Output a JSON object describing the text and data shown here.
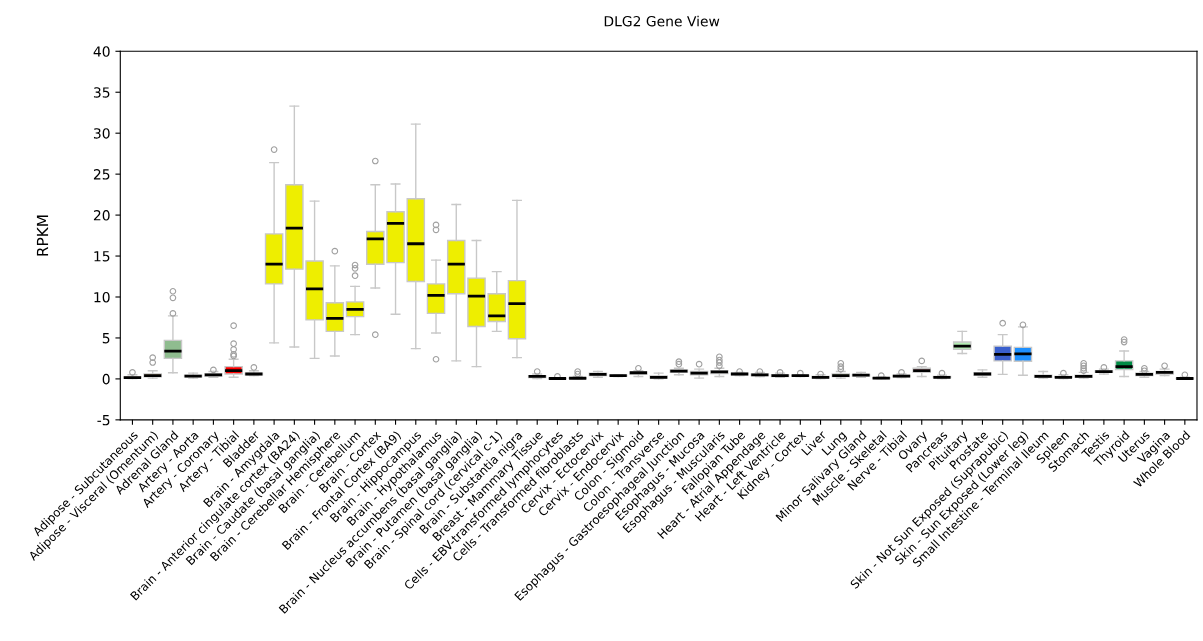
{
  "chart_data": {
    "type": "box",
    "title": "DLG2 Gene View",
    "ylabel": "RPKM",
    "categories": [
      "Adipose - Subcutaneous",
      "Adipose - Visceral (Omentum)",
      "Adrenal Gland",
      "Artery - Aorta",
      "Artery - Coronary",
      "Artery - Tibial",
      "Bladder",
      "Brain - Amygdala",
      "Brain - Anterior cingulate cortex (BA24)",
      "Brain - Caudate (basal ganglia)",
      "Brain - Cerebellar Hemisphere",
      "Brain - Cerebellum",
      "Brain - Cortex",
      "Brain - Frontal Cortex (BA9)",
      "Brain - Hippocampus",
      "Brain - Hypothalamus",
      "Brain - Nucleus accumbens (basal ganglia)",
      "Brain - Putamen (basal ganglia)",
      "Brain - Spinal cord (cervical c-1)",
      "Brain - Substantia nigra",
      "Breast - Mammary Tissue",
      "Cells - EBV-transformed lymphocytes",
      "Cells - Transformed fibroblasts",
      "Cervix - Ectocervix",
      "Cervix - Endocervix",
      "Colon - Sigmoid",
      "Colon - Transverse",
      "Esophagus - Gastroesophageal Junction",
      "Esophagus - Mucosa",
      "Esophagus - Muscularis",
      "Fallopian Tube",
      "Heart - Atrial Appendage",
      "Heart - Left Ventricle",
      "Kidney - Cortex",
      "Liver",
      "Lung",
      "Minor Salivary Gland",
      "Muscle - Skeletal",
      "Nerve - Tibial",
      "Ovary",
      "Pancreas",
      "Pituitary",
      "Prostate",
      "Skin - Not Sun Exposed (Suprapubic)",
      "Skin - Sun Exposed (Lower leg)",
      "Small Intestine - Terminal Ileum",
      "Spleen",
      "Stomach",
      "Testis",
      "Thyroid",
      "Uterus",
      "Vagina",
      "Whole Blood"
    ],
    "colors": [
      "#ffa54f",
      "#ee9a00",
      "#8fbc8f",
      "#8b1c62",
      "#ee6a50",
      "#ff0000",
      "#cdb79e",
      "#eeee00",
      "#eeee00",
      "#eeee00",
      "#eeee00",
      "#eeee00",
      "#eeee00",
      "#eeee00",
      "#eeee00",
      "#eeee00",
      "#eeee00",
      "#eeee00",
      "#eeee00",
      "#eeee00",
      "#00cdcd",
      "#ee82ee",
      "#9ac0cd",
      "#eeb4b4",
      "#eeb4b4",
      "#cdb79e",
      "#eec591",
      "#8b7355",
      "#8b7355",
      "#cdaa7d",
      "#eeb4b4",
      "#b23aee",
      "#7a378b",
      "#cdb79e",
      "#cdb79e",
      "#9acd32",
      "#cdb79e",
      "#7a67ee",
      "#ffd700",
      "#ffb6c1",
      "#cd9b1d",
      "#b4eeb4",
      "#d9d9d9",
      "#3a5fcd",
      "#1e90ff",
      "#cdb79e",
      "#cdb79e",
      "#ffd39b",
      "#a6a6a6",
      "#008b45",
      "#eed5d2",
      "#eed5d2",
      "#ff00ff"
    ],
    "boxes": [
      {
        "low": 0.05,
        "q1": 0.1,
        "median": 0.15,
        "q3": 0.25,
        "high": 0.5,
        "outliers": [
          0.8
        ]
      },
      {
        "low": 0.1,
        "q1": 0.25,
        "median": 0.4,
        "q3": 0.6,
        "high": 1.0,
        "outliers": [
          2.0,
          2.6
        ]
      },
      {
        "low": 0.75,
        "q1": 2.5,
        "median": 3.4,
        "q3": 4.7,
        "high": 7.7,
        "outliers": [
          8.0,
          9.9,
          10.7
        ]
      },
      {
        "low": 0.1,
        "q1": 0.25,
        "median": 0.35,
        "q3": 0.45,
        "high": 0.7
      },
      {
        "low": 0.2,
        "q1": 0.35,
        "median": 0.5,
        "q3": 0.65,
        "high": 0.9,
        "outliers": [
          1.1
        ]
      },
      {
        "low": 0.2,
        "q1": 0.6,
        "median": 1.0,
        "q3": 1.5,
        "high": 2.4,
        "outliers": [
          2.8,
          3.0,
          3.6,
          4.3,
          6.5
        ]
      },
      {
        "low": 0.4,
        "q1": 0.5,
        "median": 0.6,
        "q3": 0.7,
        "high": 1.0,
        "outliers": [
          1.4
        ]
      },
      {
        "low": 4.4,
        "q1": 11.6,
        "median": 14.0,
        "q3": 17.7,
        "high": 26.4,
        "outliers": [
          28.0
        ]
      },
      {
        "low": 3.9,
        "q1": 13.4,
        "median": 18.4,
        "q3": 23.7,
        "high": 33.3
      },
      {
        "low": 2.5,
        "q1": 7.2,
        "median": 11.0,
        "q3": 14.4,
        "high": 21.7
      },
      {
        "low": 2.8,
        "q1": 5.8,
        "median": 7.4,
        "q3": 9.3,
        "high": 13.8,
        "outliers": [
          15.6
        ]
      },
      {
        "low": 5.4,
        "q1": 7.6,
        "median": 8.5,
        "q3": 9.4,
        "high": 11.3,
        "outliers": [
          12.6,
          13.5,
          13.9
        ]
      },
      {
        "low": 11.1,
        "q1": 14.0,
        "median": 17.1,
        "q3": 18.0,
        "high": 23.7,
        "outliers": [
          5.4,
          26.6
        ]
      },
      {
        "low": 7.9,
        "q1": 14.2,
        "median": 19.0,
        "q3": 20.4,
        "high": 23.8
      },
      {
        "low": 3.7,
        "q1": 11.9,
        "median": 16.5,
        "q3": 22.0,
        "high": 31.1
      },
      {
        "low": 5.6,
        "q1": 8.0,
        "median": 10.2,
        "q3": 11.6,
        "high": 14.5,
        "outliers": [
          2.4,
          18.2,
          18.8
        ]
      },
      {
        "low": 2.2,
        "q1": 10.4,
        "median": 14.0,
        "q3": 16.9,
        "high": 21.3
      },
      {
        "low": 1.5,
        "q1": 6.4,
        "median": 10.1,
        "q3": 12.3,
        "high": 16.9
      },
      {
        "low": 5.8,
        "q1": 7.0,
        "median": 7.7,
        "q3": 10.4,
        "high": 13.1
      },
      {
        "low": 2.6,
        "q1": 4.9,
        "median": 9.2,
        "q3": 12.0,
        "high": 21.8
      },
      {
        "low": 0.05,
        "q1": 0.15,
        "median": 0.3,
        "q3": 0.4,
        "high": 0.6,
        "outliers": [
          0.9
        ]
      },
      {
        "low": 0.0,
        "q1": 0.02,
        "median": 0.05,
        "q3": 0.1,
        "high": 0.15,
        "outliers": [
          0.3
        ]
      },
      {
        "low": 0.0,
        "q1": 0.03,
        "median": 0.08,
        "q3": 0.12,
        "high": 0.3,
        "outliers": [
          0.6,
          0.9
        ]
      },
      {
        "low": 0.2,
        "q1": 0.4,
        "median": 0.55,
        "q3": 0.7,
        "high": 0.9
      },
      {
        "low": 0.3,
        "q1": 0.35,
        "median": 0.4,
        "q3": 0.45,
        "high": 0.5
      },
      {
        "low": 0.3,
        "q1": 0.6,
        "median": 0.75,
        "q3": 0.85,
        "high": 1.0,
        "outliers": [
          1.3
        ]
      },
      {
        "low": 0.0,
        "q1": 0.1,
        "median": 0.2,
        "q3": 0.35,
        "high": 0.7
      },
      {
        "low": 0.5,
        "q1": 0.8,
        "median": 0.95,
        "q3": 1.1,
        "high": 1.3,
        "outliers": [
          1.8,
          2.1
        ]
      },
      {
        "low": 0.1,
        "q1": 0.5,
        "median": 0.7,
        "q3": 0.9,
        "high": 1.2,
        "outliers": [
          1.8
        ]
      },
      {
        "low": 0.3,
        "q1": 0.65,
        "median": 0.85,
        "q3": 1.0,
        "high": 1.3,
        "outliers": [
          1.6,
          2.0,
          2.3,
          2.7
        ]
      },
      {
        "low": 0.4,
        "q1": 0.5,
        "median": 0.6,
        "q3": 0.7,
        "high": 0.8,
        "outliers": [
          0.9
        ]
      },
      {
        "low": 0.3,
        "q1": 0.4,
        "median": 0.5,
        "q3": 0.6,
        "high": 0.8,
        "outliers": [
          0.9
        ]
      },
      {
        "low": 0.2,
        "q1": 0.3,
        "median": 0.4,
        "q3": 0.5,
        "high": 0.7,
        "outliers": [
          0.8
        ]
      },
      {
        "low": 0.3,
        "q1": 0.35,
        "median": 0.4,
        "q3": 0.45,
        "high": 0.5,
        "outliers": [
          0.7
        ]
      },
      {
        "low": 0.05,
        "q1": 0.1,
        "median": 0.2,
        "q3": 0.3,
        "high": 0.5,
        "outliers": [
          0.6
        ]
      },
      {
        "low": 0.1,
        "q1": 0.3,
        "median": 0.4,
        "q3": 0.6,
        "high": 0.9,
        "outliers": [
          1.2,
          1.5,
          1.9
        ]
      },
      {
        "low": 0.2,
        "q1": 0.35,
        "median": 0.45,
        "q3": 0.55,
        "high": 0.8
      },
      {
        "low": 0.0,
        "q1": 0.05,
        "median": 0.1,
        "q3": 0.15,
        "high": 0.25,
        "outliers": [
          0.4
        ]
      },
      {
        "low": 0.15,
        "q1": 0.25,
        "median": 0.35,
        "q3": 0.45,
        "high": 0.6,
        "outliers": [
          0.8
        ]
      },
      {
        "low": 0.3,
        "q1": 0.8,
        "median": 1.0,
        "q3": 1.3,
        "high": 1.5,
        "outliers": [
          2.2
        ]
      },
      {
        "low": 0.05,
        "q1": 0.15,
        "median": 0.2,
        "q3": 0.3,
        "high": 0.45,
        "outliers": [
          0.7
        ]
      },
      {
        "low": 3.1,
        "q1": 3.6,
        "median": 4.0,
        "q3": 4.5,
        "high": 5.8
      },
      {
        "low": 0.2,
        "q1": 0.45,
        "median": 0.6,
        "q3": 0.75,
        "high": 1.1
      },
      {
        "low": 0.55,
        "q1": 2.2,
        "median": 3.0,
        "q3": 4.0,
        "high": 5.4,
        "outliers": [
          6.8
        ]
      },
      {
        "low": 0.45,
        "q1": 2.15,
        "median": 3.05,
        "q3": 3.85,
        "high": 6.35,
        "outliers": [
          6.6
        ]
      },
      {
        "low": 0.1,
        "q1": 0.2,
        "median": 0.3,
        "q3": 0.45,
        "high": 0.9
      },
      {
        "low": 0.05,
        "q1": 0.15,
        "median": 0.2,
        "q3": 0.3,
        "high": 0.5,
        "outliers": [
          0.7
        ]
      },
      {
        "low": 0.1,
        "q1": 0.2,
        "median": 0.3,
        "q3": 0.45,
        "high": 0.8,
        "outliers": [
          1.0,
          1.3,
          1.6,
          1.9
        ]
      },
      {
        "low": 0.6,
        "q1": 0.8,
        "median": 0.9,
        "q3": 1.0,
        "high": 1.2,
        "outliers": [
          1.4
        ]
      },
      {
        "low": 0.3,
        "q1": 1.15,
        "median": 1.5,
        "q3": 2.2,
        "high": 3.4,
        "outliers": [
          4.5,
          4.8
        ]
      },
      {
        "low": 0.2,
        "q1": 0.4,
        "median": 0.55,
        "q3": 0.7,
        "high": 0.9,
        "outliers": [
          1.0,
          1.3
        ]
      },
      {
        "low": 0.4,
        "q1": 0.6,
        "median": 0.8,
        "q3": 0.9,
        "high": 1.2,
        "outliers": [
          1.6
        ]
      },
      {
        "low": 0.0,
        "q1": 0.02,
        "median": 0.05,
        "q3": 0.1,
        "high": 0.2,
        "outliers": [
          0.5
        ]
      }
    ],
    "ylim": [
      -5,
      40
    ],
    "yticks": [
      -5,
      0,
      5,
      10,
      15,
      20,
      25,
      30,
      35,
      40
    ]
  }
}
